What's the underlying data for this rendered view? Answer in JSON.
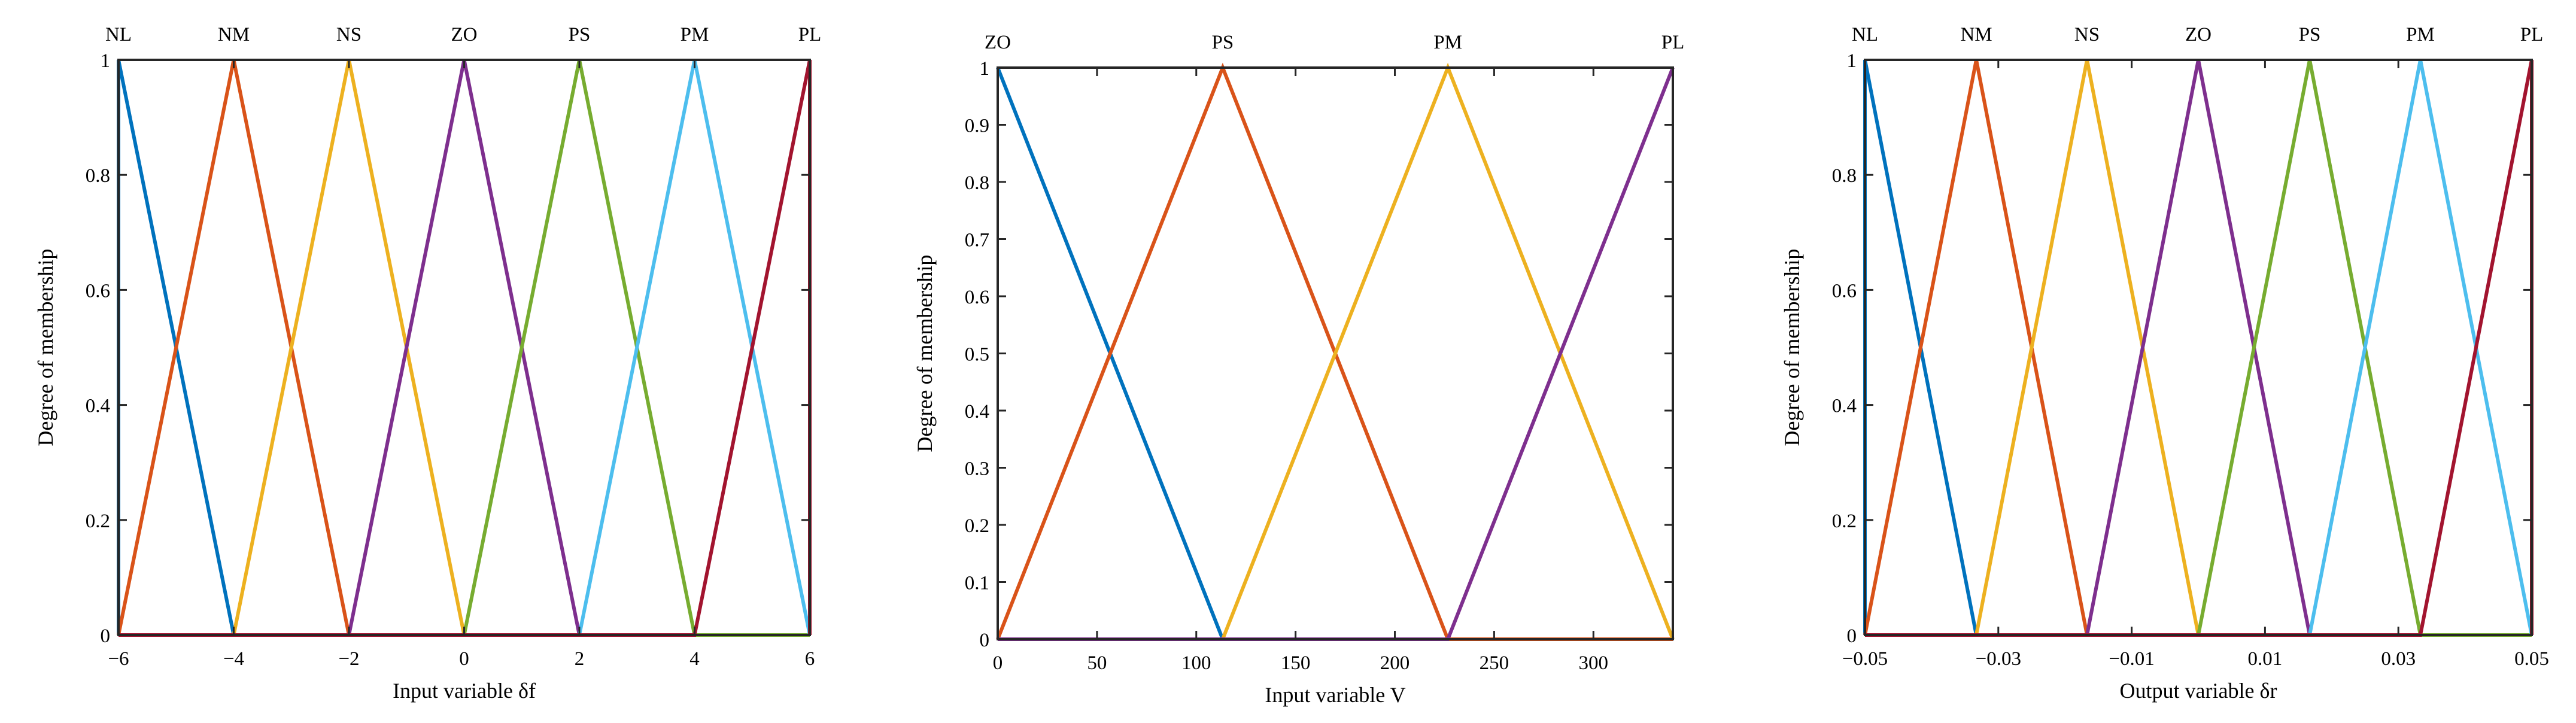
{
  "colors": {
    "NL": "#0072BD",
    "NM": "#D95319",
    "NS": "#EDB120",
    "ZO": "#7E2F8E",
    "PS": "#77AC30",
    "PM": "#4DBEEE",
    "PL": "#A2142F",
    "axis": "#262626"
  },
  "chart_data": [
    {
      "type": "line",
      "xlabel": "Input variable  δf",
      "ylabel": "Degree of membership",
      "xlim": [
        -6,
        6
      ],
      "ylim": [
        0,
        1
      ],
      "xticks": [
        -6,
        -4,
        -2,
        0,
        2,
        4,
        6
      ],
      "xtick_labels": [
        "−6",
        "−4",
        "−2",
        "0",
        "2",
        "4",
        "6"
      ],
      "yticks": [
        0,
        0.2,
        0.4,
        0.6,
        0.8,
        1
      ],
      "ytick_labels": [
        "0",
        "0.2",
        "0.4",
        "0.6",
        "0.8",
        "1"
      ],
      "grid": false,
      "series": [
        {
          "name": "NL",
          "color_key": "NL",
          "x": [
            -6,
            -6,
            -4,
            6
          ],
          "y": [
            0,
            1,
            0,
            0
          ]
        },
        {
          "name": "NM",
          "color_key": "NM",
          "x": [
            -6,
            -4,
            -2,
            6
          ],
          "y": [
            0,
            1,
            0,
            0
          ]
        },
        {
          "name": "NS",
          "color_key": "NS",
          "x": [
            -6,
            -4,
            -2,
            0,
            6
          ],
          "y": [
            0,
            0,
            1,
            0,
            0
          ]
        },
        {
          "name": "ZO",
          "color_key": "ZO",
          "x": [
            -6,
            -2,
            0,
            2,
            6
          ],
          "y": [
            0,
            0,
            1,
            0,
            0
          ]
        },
        {
          "name": "PS",
          "color_key": "PS",
          "x": [
            -6,
            0,
            2,
            4,
            6
          ],
          "y": [
            0,
            0,
            1,
            0,
            0
          ]
        },
        {
          "name": "PM",
          "color_key": "PM",
          "x": [
            -6,
            2,
            4,
            6
          ],
          "y": [
            0,
            0,
            1,
            0
          ]
        },
        {
          "name": "PL",
          "color_key": "PL",
          "x": [
            -6,
            4,
            6,
            6
          ],
          "y": [
            0,
            0,
            1,
            0
          ]
        }
      ]
    },
    {
      "type": "line",
      "xlabel": "Input variable V",
      "ylabel": "Degree of membership",
      "xlim": [
        0,
        340
      ],
      "ylim": [
        0,
        1
      ],
      "xticks": [
        0,
        50,
        100,
        150,
        200,
        250,
        300
      ],
      "xtick_labels": [
        "0",
        "50",
        "100",
        "150",
        "200",
        "250",
        "300"
      ],
      "yticks": [
        0,
        0.1,
        0.2,
        0.3,
        0.4,
        0.5,
        0.6,
        0.7,
        0.8,
        0.9,
        1
      ],
      "ytick_labels": [
        "0",
        "0.1",
        "0.2",
        "0.3",
        "0.4",
        "0.5",
        "0.6",
        "0.7",
        "0.8",
        "0.9",
        "1"
      ],
      "grid": false,
      "series": [
        {
          "name": "ZO",
          "color_key": "NL",
          "x": [
            0,
            113.3,
            340
          ],
          "y": [
            1,
            0,
            0
          ]
        },
        {
          "name": "PS",
          "color_key": "NM",
          "x": [
            0,
            113.3,
            226.7,
            340
          ],
          "y": [
            0,
            1,
            0,
            0
          ]
        },
        {
          "name": "PM",
          "color_key": "NS",
          "x": [
            0,
            113.3,
            226.7,
            340
          ],
          "y": [
            0,
            0,
            1,
            0
          ]
        },
        {
          "name": "PL",
          "color_key": "ZO",
          "x": [
            0,
            226.7,
            340
          ],
          "y": [
            0,
            0,
            1
          ]
        }
      ]
    },
    {
      "type": "line",
      "xlabel": "Output variable δr",
      "ylabel": "Degree of membership",
      "xlim": [
        -0.05,
        0.05
      ],
      "ylim": [
        0,
        1
      ],
      "xticks": [
        -0.05,
        -0.03,
        -0.01,
        0.01,
        0.03,
        0.05
      ],
      "xtick_labels": [
        "−0.05",
        "−0.03",
        "−0.01",
        "0.01",
        "0.03",
        "0.05"
      ],
      "yticks": [
        0,
        0.2,
        0.4,
        0.6,
        0.8,
        1
      ],
      "ytick_labels": [
        "0",
        "0.2",
        "0.4",
        "0.6",
        "0.8",
        "1"
      ],
      "grid": false,
      "series": [
        {
          "name": "NL",
          "color_key": "NL",
          "x": [
            -0.05,
            -0.05,
            -0.0333,
            0.05
          ],
          "y": [
            0,
            1,
            0,
            0
          ]
        },
        {
          "name": "NM",
          "color_key": "NM",
          "x": [
            -0.05,
            -0.0333,
            -0.0167,
            0.05
          ],
          "y": [
            0,
            1,
            0,
            0
          ]
        },
        {
          "name": "NS",
          "color_key": "NS",
          "x": [
            -0.05,
            -0.0333,
            -0.0167,
            0,
            0.05
          ],
          "y": [
            0,
            0,
            1,
            0,
            0
          ]
        },
        {
          "name": "ZO",
          "color_key": "ZO",
          "x": [
            -0.05,
            -0.0167,
            0,
            0.0167,
            0.05
          ],
          "y": [
            0,
            0,
            1,
            0,
            0
          ]
        },
        {
          "name": "PS",
          "color_key": "PS",
          "x": [
            -0.05,
            0,
            0.0167,
            0.0333,
            0.05
          ],
          "y": [
            0,
            0,
            1,
            0,
            0
          ]
        },
        {
          "name": "PM",
          "color_key": "PM",
          "x": [
            -0.05,
            0.0167,
            0.0333,
            0.05
          ],
          "y": [
            0,
            0,
            1,
            0
          ]
        },
        {
          "name": "PL",
          "color_key": "PL",
          "x": [
            -0.05,
            0.0333,
            0.05,
            0.05
          ],
          "y": [
            0,
            0,
            1,
            0
          ]
        }
      ]
    }
  ]
}
